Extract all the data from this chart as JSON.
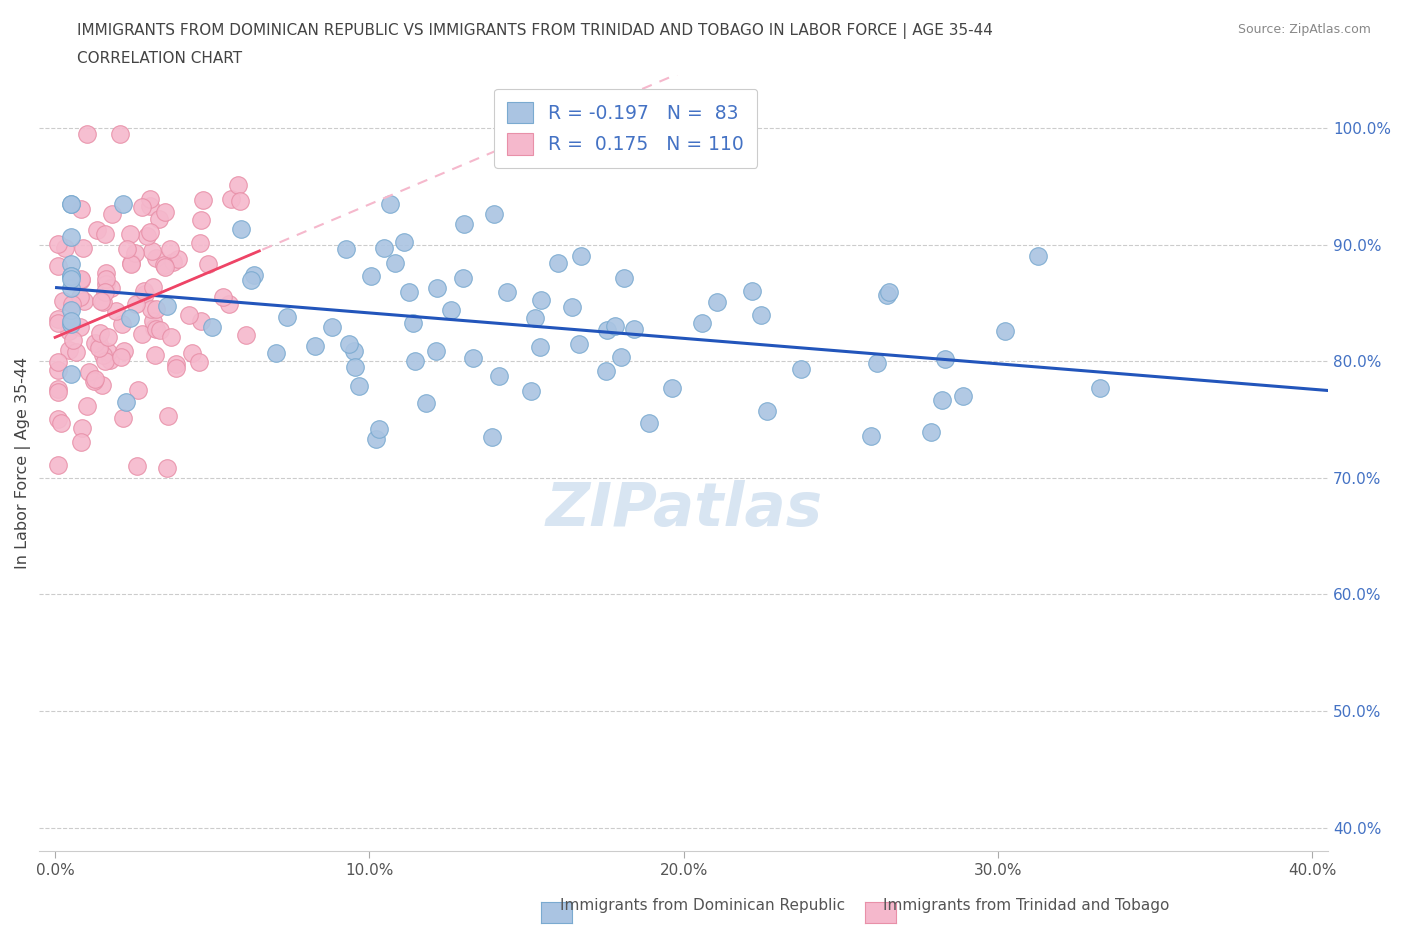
{
  "title_line1": "IMMIGRANTS FROM DOMINICAN REPUBLIC VS IMMIGRANTS FROM TRINIDAD AND TOBAGO IN LABOR FORCE | AGE 35-44",
  "title_line2": "CORRELATION CHART",
  "source_text": "Source: ZipAtlas.com",
  "ylabel": "In Labor Force | Age 35-44",
  "xlim": [
    -0.005,
    0.405
  ],
  "ylim": [
    0.38,
    1.045
  ],
  "ytick_labels": [
    "40.0%",
    "50.0%",
    "60.0%",
    "70.0%",
    "80.0%",
    "90.0%",
    "100.0%"
  ],
  "ytick_values": [
    0.4,
    0.5,
    0.6,
    0.7,
    0.8,
    0.9,
    1.0
  ],
  "xtick_labels": [
    "0.0%",
    "10.0%",
    "20.0%",
    "30.0%",
    "40.0%"
  ],
  "xtick_values": [
    0.0,
    0.1,
    0.2,
    0.3,
    0.4
  ],
  "blue_R": -0.197,
  "blue_N": 83,
  "pink_R": 0.175,
  "pink_N": 110,
  "blue_color": "#aac4e2",
  "pink_color": "#f5b8cc",
  "blue_edge": "#7aaad0",
  "pink_edge": "#e890a8",
  "blue_line_color": "#2255bb",
  "pink_line_color": "#ee4466",
  "pink_dash_color": "#f5b8cc",
  "watermark_color": "#b8d0e8",
  "legend_label_blue": "R = -0.197   N =  83",
  "legend_label_pink": "R =  0.175   N = 110",
  "legend_text_color": "#4472c4",
  "bottom_label1": "Immigrants from Dominican Republic",
  "bottom_label2": "Immigrants from Trinidad and Tobago",
  "source_color": "#888888",
  "axis_color": "#555555",
  "grid_color": "#cccccc"
}
